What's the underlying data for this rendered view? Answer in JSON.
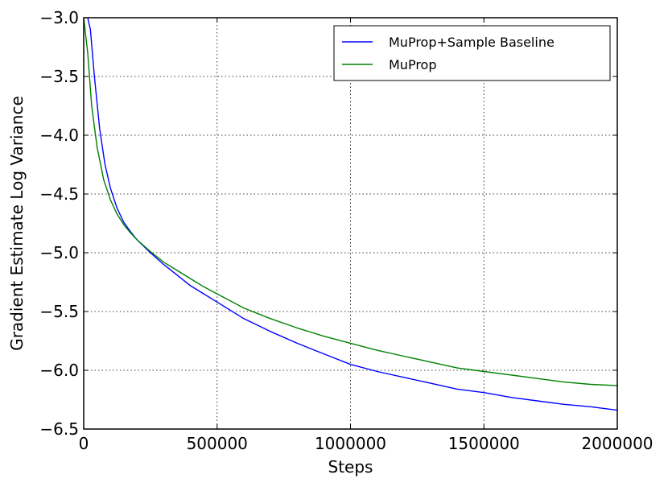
{
  "chart_data": {
    "type": "line",
    "title": "",
    "xlabel": "Steps",
    "ylabel": "Gradient Estimate Log Variance",
    "xlim": [
      0,
      2000000
    ],
    "ylim": [
      -6.5,
      -3.0
    ],
    "x_ticks": [
      0,
      500000,
      1000000,
      1500000,
      2000000
    ],
    "x_tick_labels": [
      "0",
      "500000",
      "1000000",
      "1500000",
      "2000000"
    ],
    "y_ticks": [
      -3.0,
      -3.5,
      -4.0,
      -4.5,
      -5.0,
      -5.5,
      -6.0,
      -6.5
    ],
    "y_tick_labels": [
      "−3.0",
      "−3.5",
      "−4.0",
      "−4.5",
      "−5.0",
      "−5.5",
      "−6.0",
      "−6.5"
    ],
    "grid": true,
    "legend_position": "top-right",
    "series": [
      {
        "name": "MuProp+Sample Baseline",
        "color": "#0000ff",
        "x": [
          15000,
          25000,
          40000,
          60000,
          80000,
          100000,
          125000,
          150000,
          175000,
          200000,
          250000,
          300000,
          350000,
          400000,
          450000,
          500000,
          600000,
          700000,
          800000,
          900000,
          1000000,
          1100000,
          1200000,
          1300000,
          1400000,
          1500000,
          1600000,
          1700000,
          1800000,
          1900000,
          2000000
        ],
        "values": [
          -3.0,
          -3.1,
          -3.5,
          -3.95,
          -4.25,
          -4.45,
          -4.62,
          -4.74,
          -4.82,
          -4.89,
          -5.0,
          -5.1,
          -5.19,
          -5.28,
          -5.35,
          -5.42,
          -5.56,
          -5.67,
          -5.77,
          -5.86,
          -5.95,
          -6.01,
          -6.06,
          -6.11,
          -6.16,
          -6.19,
          -6.23,
          -6.26,
          -6.29,
          -6.31,
          -6.34
        ]
      },
      {
        "name": "MuProp",
        "color": "#008000",
        "x": [
          0,
          15000,
          30000,
          50000,
          75000,
          100000,
          125000,
          150000,
          175000,
          200000,
          250000,
          300000,
          350000,
          400000,
          450000,
          500000,
          600000,
          700000,
          800000,
          900000,
          1000000,
          1100000,
          1200000,
          1300000,
          1400000,
          1500000,
          1600000,
          1700000,
          1800000,
          1900000,
          2000000
        ],
        "values": [
          -3.0,
          -3.3,
          -3.75,
          -4.1,
          -4.38,
          -4.55,
          -4.67,
          -4.76,
          -4.83,
          -4.89,
          -4.99,
          -5.08,
          -5.15,
          -5.22,
          -5.29,
          -5.35,
          -5.47,
          -5.56,
          -5.64,
          -5.71,
          -5.77,
          -5.83,
          -5.88,
          -5.93,
          -5.98,
          -6.01,
          -6.04,
          -6.07,
          -6.1,
          -6.12,
          -6.13
        ]
      }
    ]
  }
}
